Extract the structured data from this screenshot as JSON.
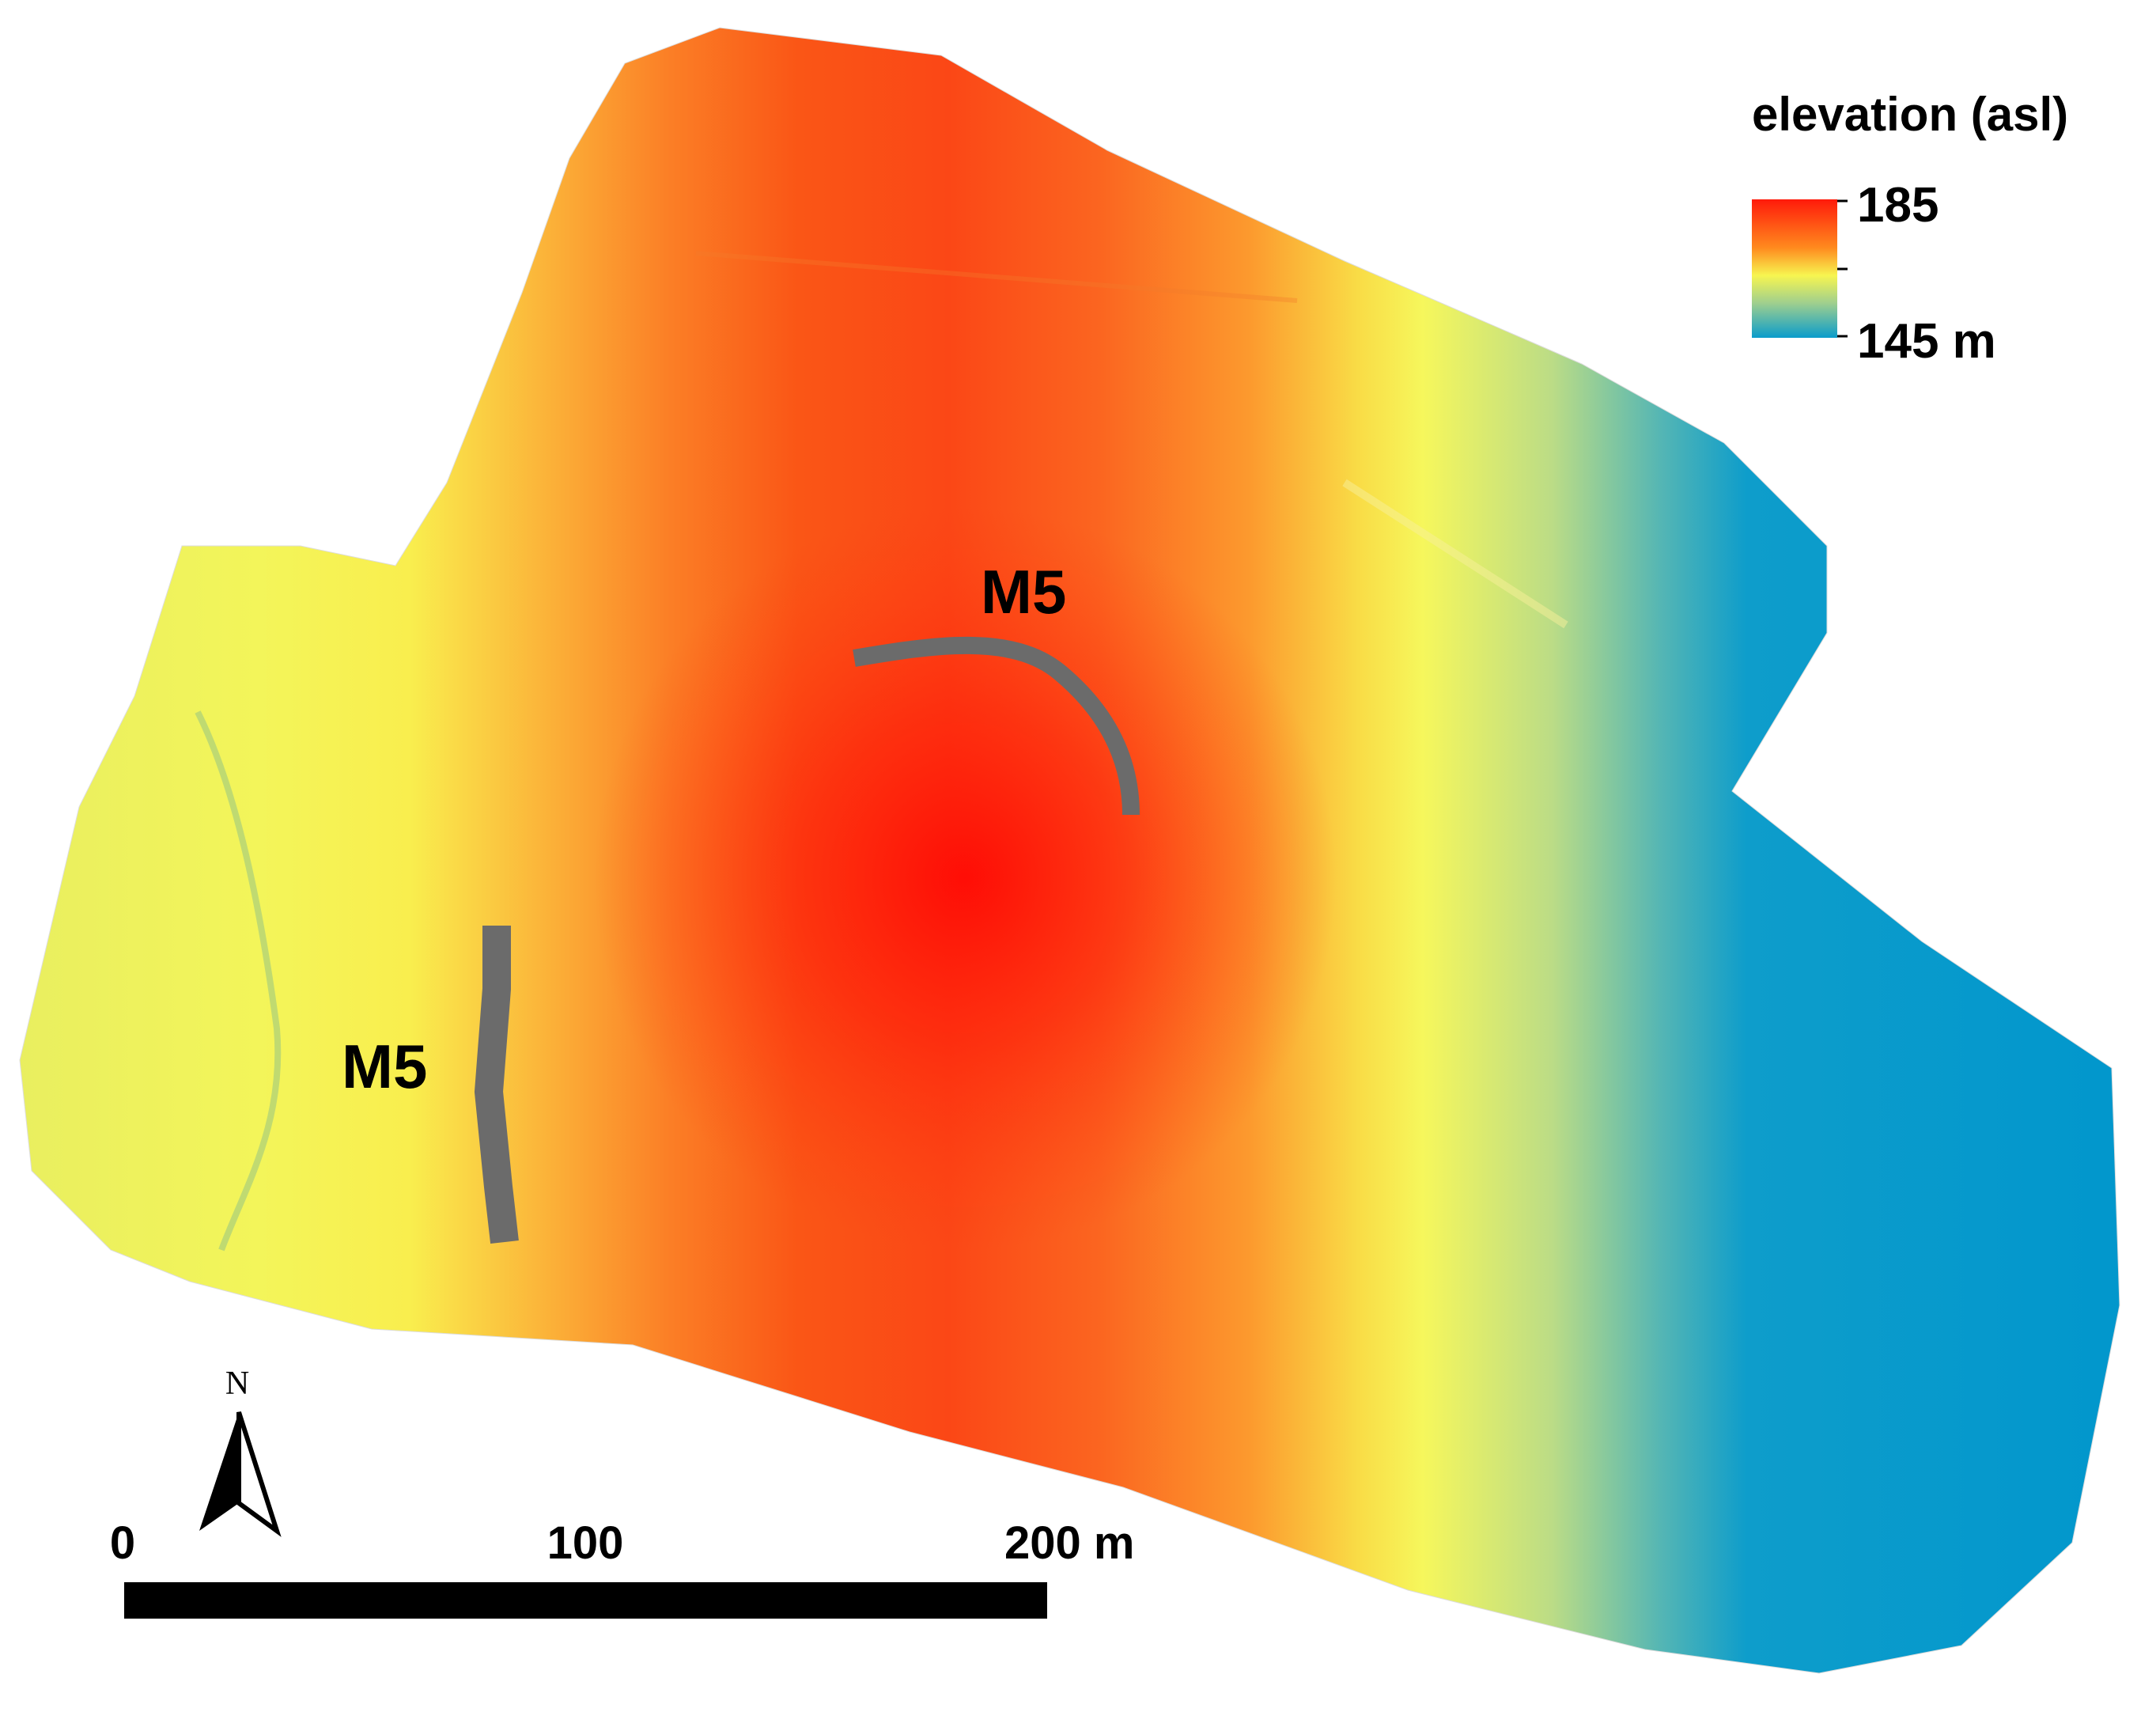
{
  "legend": {
    "title": "elevation (asl)",
    "max_label": "185",
    "min_label": "145 m",
    "max_value": 185,
    "min_value": 145,
    "unit": "m",
    "colors": [
      "#ff1a0a",
      "#ff8a1e",
      "#f7f550",
      "#9fcf8e",
      "#0a9ccb"
    ]
  },
  "features": [
    {
      "label": "M5",
      "kind": "curved trench"
    },
    {
      "label": "M5",
      "kind": "linear trench"
    }
  ],
  "north_arrow": {
    "label": "N"
  },
  "scale_bar": {
    "labels": [
      "0",
      "100",
      "200 m"
    ],
    "max_value": 200,
    "unit": "m"
  },
  "colors": {
    "trench": "#6b6b6b",
    "background": "#ffffff"
  }
}
